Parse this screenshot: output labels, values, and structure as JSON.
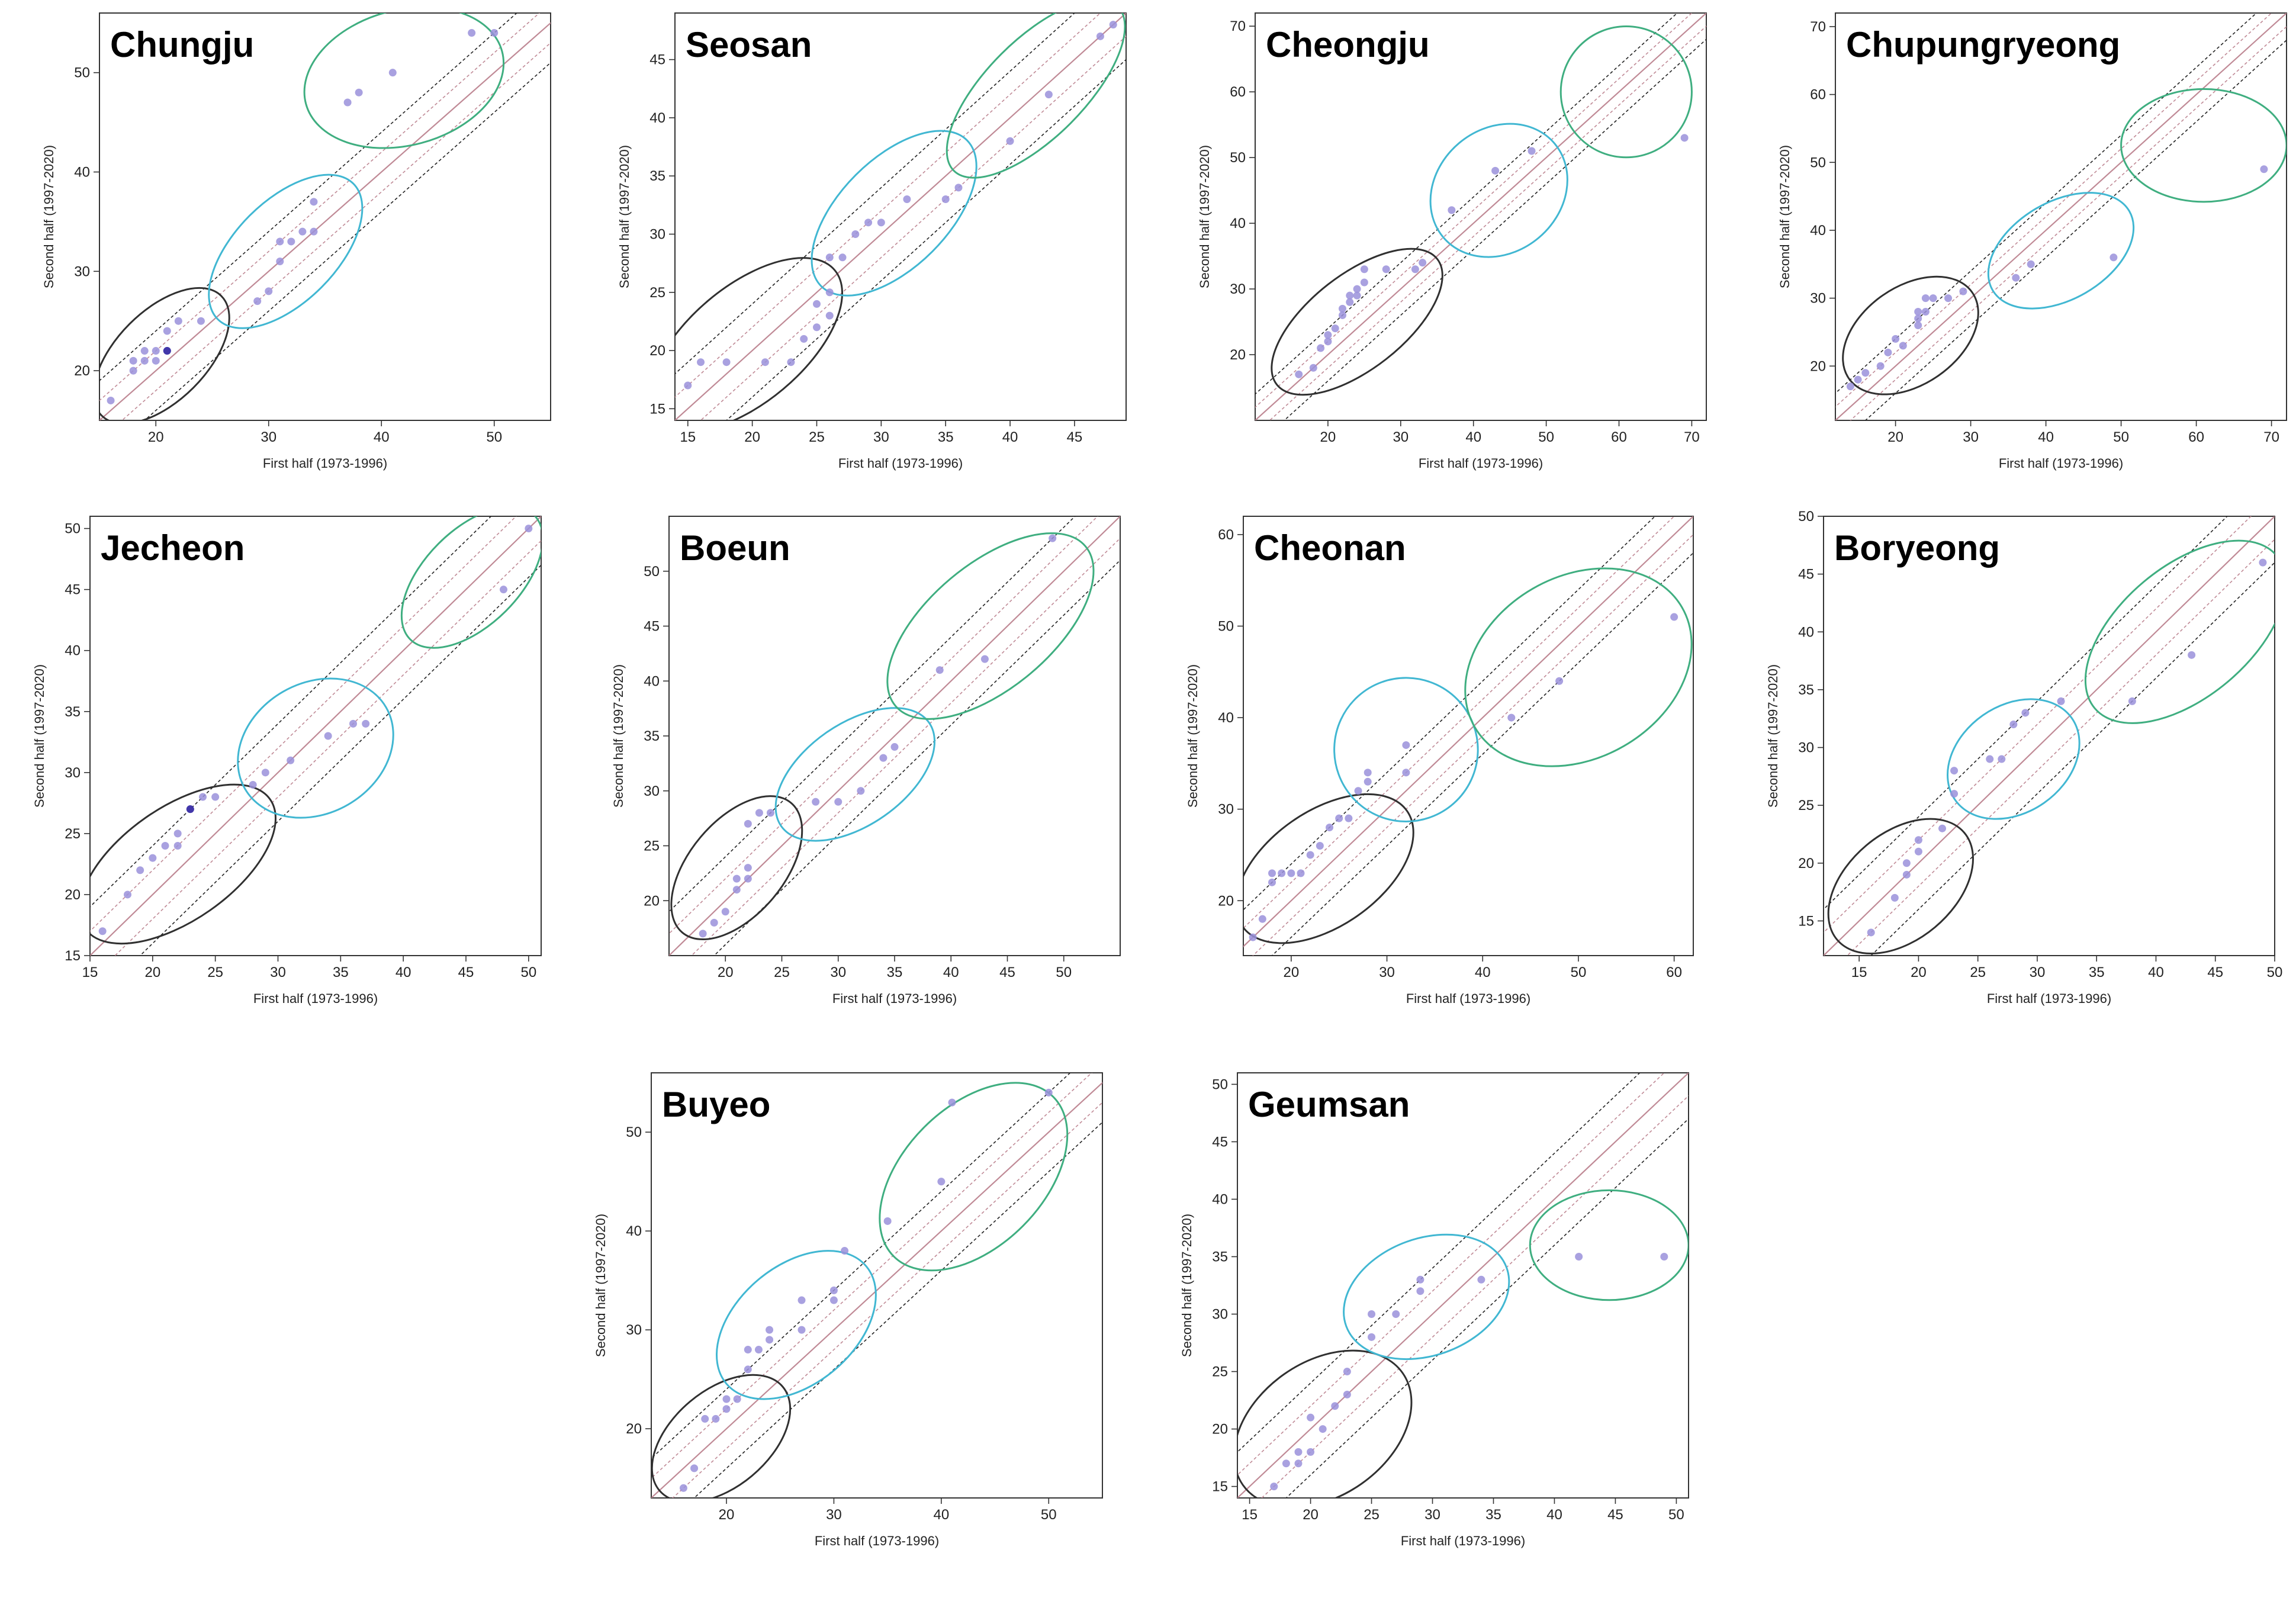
{
  "figure": {
    "x_axis_label": "First half (1973-1996)",
    "y_axis_label": "Second half (1997-2020)"
  },
  "colors": {
    "identity_line": "#c08a96",
    "interval_line": "#222222",
    "point_fill": "#9a90da",
    "point_dense": "#3e32a8",
    "cluster_low": "#303030",
    "cluster_mid": "#41b7d2",
    "cluster_high": "#3fae80",
    "frame": "#333333"
  },
  "chart_data": [
    {
      "station": "Chungju",
      "type": "scatter",
      "xlim": [
        15,
        55
      ],
      "ylim": [
        15,
        56
      ],
      "xticks": [
        20,
        30,
        40,
        50
      ],
      "yticks": [
        20,
        30,
        40,
        50
      ],
      "x": [
        16,
        18,
        18,
        19,
        19,
        20,
        20,
        21,
        21,
        21,
        22,
        24,
        29,
        30,
        31,
        31,
        32,
        33,
        34,
        34,
        37,
        38,
        41,
        48,
        50
      ],
      "y": [
        17,
        20,
        21,
        21,
        22,
        22,
        21,
        22,
        22,
        24,
        25,
        25,
        27,
        28,
        31,
        33,
        33,
        34,
        34,
        37,
        47,
        48,
        50,
        54,
        54
      ],
      "clusters": [
        {
          "group": "low",
          "cx": 20.5,
          "cy": 21.5,
          "rx": 7.5,
          "ry": 4.0,
          "angle": 45
        },
        {
          "group": "mid",
          "cx": 31.5,
          "cy": 32.0,
          "rx": 8.5,
          "ry": 4.5,
          "angle": 45
        },
        {
          "group": "high",
          "cx": 42.0,
          "cy": 49.5,
          "rx": 9.0,
          "ry": 6.0,
          "angle": 15
        }
      ]
    },
    {
      "station": "Seosan",
      "type": "scatter",
      "xlim": [
        14,
        49
      ],
      "ylim": [
        14,
        49
      ],
      "xticks": [
        15,
        20,
        25,
        30,
        35,
        40,
        45
      ],
      "yticks": [
        15,
        20,
        25,
        30,
        35,
        40,
        45
      ],
      "x": [
        15,
        16,
        18,
        21,
        23,
        24,
        25,
        25,
        26,
        26,
        26,
        27,
        28,
        29,
        30,
        32,
        35,
        36,
        40,
        43,
        47,
        48
      ],
      "y": [
        17,
        19,
        19,
        19,
        19,
        21,
        22,
        24,
        23,
        25,
        28,
        28,
        30,
        31,
        31,
        33,
        33,
        34,
        38,
        42,
        47,
        48
      ],
      "clusters": [
        {
          "group": "low",
          "cx": 19.5,
          "cy": 20.5,
          "rx": 9.0,
          "ry": 4.5,
          "angle": 40
        },
        {
          "group": "mid",
          "cx": 31.0,
          "cy": 31.8,
          "rx": 8.0,
          "ry": 4.2,
          "angle": 45
        },
        {
          "group": "high",
          "cx": 42.0,
          "cy": 42.5,
          "rx": 9.0,
          "ry": 3.8,
          "angle": 45
        }
      ]
    },
    {
      "station": "Cheongju",
      "type": "scatter",
      "xlim": [
        10,
        72
      ],
      "ylim": [
        10,
        72
      ],
      "xticks": [
        20,
        30,
        40,
        50,
        60,
        70
      ],
      "yticks": [
        20,
        30,
        40,
        50,
        60,
        70
      ],
      "x": [
        16,
        18,
        19,
        20,
        20,
        21,
        22,
        22,
        23,
        23,
        24,
        24,
        25,
        25,
        28,
        32,
        33,
        37,
        43,
        48,
        69
      ],
      "y": [
        17,
        18,
        21,
        22,
        23,
        24,
        26,
        27,
        28,
        29,
        29,
        30,
        31,
        33,
        33,
        33,
        34,
        42,
        48,
        51,
        53
      ],
      "clusters": [
        {
          "group": "low",
          "cx": 24.0,
          "cy": 25.0,
          "rx": 14.0,
          "ry": 6.5,
          "angle": 38
        },
        {
          "group": "mid",
          "cx": 43.5,
          "cy": 45.0,
          "rx": 10.0,
          "ry": 8.5,
          "angle": 40
        },
        {
          "group": "high",
          "cx": 61.0,
          "cy": 60.0,
          "rx": 9.0,
          "ry": 9.0,
          "angle": 0
        }
      ]
    },
    {
      "station": "Chupungryeong",
      "type": "scatter",
      "xlim": [
        12,
        72
      ],
      "ylim": [
        12,
        72
      ],
      "xticks": [
        20,
        30,
        40,
        50,
        60,
        70
      ],
      "yticks": [
        20,
        30,
        40,
        50,
        60,
        70
      ],
      "x": [
        14,
        15,
        16,
        18,
        19,
        20,
        21,
        23,
        23,
        23,
        24,
        24,
        25,
        27,
        29,
        36,
        38,
        49,
        69
      ],
      "y": [
        17,
        18,
        19,
        20,
        22,
        24,
        23,
        26,
        27,
        28,
        28,
        30,
        30,
        30,
        31,
        33,
        35,
        36,
        49
      ],
      "clusters": [
        {
          "group": "low",
          "cx": 22.0,
          "cy": 24.5,
          "rx": 10.0,
          "ry": 6.5,
          "angle": 35
        },
        {
          "group": "mid",
          "cx": 42.0,
          "cy": 37.0,
          "rx": 10.5,
          "ry": 6.5,
          "angle": 30
        },
        {
          "group": "high",
          "cx": 61.0,
          "cy": 52.5,
          "rx": 11.0,
          "ry": 7.5,
          "angle": 0
        }
      ]
    },
    {
      "station": "Jecheon",
      "type": "scatter",
      "xlim": [
        15,
        51
      ],
      "ylim": [
        15,
        51
      ],
      "xticks": [
        15,
        20,
        25,
        30,
        35,
        40,
        45,
        50
      ],
      "yticks": [
        15,
        20,
        25,
        30,
        35,
        40,
        45,
        50
      ],
      "x": [
        16,
        18,
        19,
        20,
        21,
        22,
        22,
        23,
        23,
        24,
        25,
        28,
        29,
        31,
        34,
        36,
        37,
        48,
        50
      ],
      "y": [
        17,
        20,
        22,
        23,
        24,
        24,
        25,
        27,
        27,
        28,
        28,
        29,
        30,
        31,
        33,
        34,
        34,
        45,
        50
      ],
      "clusters": [
        {
          "group": "low",
          "cx": 22.0,
          "cy": 22.5,
          "rx": 9.0,
          "ry": 4.5,
          "angle": 35
        },
        {
          "group": "mid",
          "cx": 33.0,
          "cy": 32.0,
          "rx": 6.5,
          "ry": 5.2,
          "angle": 30
        },
        {
          "group": "high",
          "cx": 45.5,
          "cy": 46.0,
          "rx": 7.0,
          "ry": 3.8,
          "angle": 45
        }
      ]
    },
    {
      "station": "Boeun",
      "type": "scatter",
      "xlim": [
        15,
        55
      ],
      "ylim": [
        15,
        55
      ],
      "xticks": [
        20,
        25,
        30,
        35,
        40,
        45,
        50
      ],
      "yticks": [
        20,
        25,
        30,
        35,
        40,
        45,
        50
      ],
      "x": [
        18,
        19,
        20,
        21,
        21,
        22,
        22,
        22,
        23,
        24,
        28,
        30,
        32,
        34,
        35,
        39,
        43,
        49
      ],
      "y": [
        17,
        18,
        19,
        21,
        22,
        22,
        23,
        27,
        28,
        28,
        29,
        29,
        30,
        33,
        34,
        41,
        42,
        53
      ],
      "clusters": [
        {
          "group": "low",
          "cx": 21.0,
          "cy": 23.0,
          "rx": 7.5,
          "ry": 4.2,
          "angle": 50
        },
        {
          "group": "mid",
          "cx": 31.5,
          "cy": 31.5,
          "rx": 8.0,
          "ry": 4.5,
          "angle": 35
        },
        {
          "group": "high",
          "cx": 43.5,
          "cy": 45.0,
          "rx": 11.0,
          "ry": 5.5,
          "angle": 40
        }
      ]
    },
    {
      "station": "Cheonan",
      "type": "scatter",
      "xlim": [
        15,
        62
      ],
      "ylim": [
        14,
        62
      ],
      "xticks": [
        20,
        30,
        40,
        50,
        60
      ],
      "yticks": [
        20,
        30,
        40,
        50,
        60
      ],
      "x": [
        16,
        17,
        18,
        18,
        19,
        20,
        21,
        22,
        23,
        24,
        25,
        26,
        27,
        28,
        28,
        32,
        32,
        43,
        48,
        60
      ],
      "y": [
        16,
        18,
        22,
        23,
        23,
        23,
        23,
        25,
        26,
        28,
        29,
        29,
        32,
        33,
        34,
        34,
        37,
        40,
        44,
        51
      ],
      "clusters": [
        {
          "group": "low",
          "cx": 23.5,
          "cy": 23.5,
          "rx": 10.5,
          "ry": 6.0,
          "angle": 35
        },
        {
          "group": "mid",
          "cx": 32.0,
          "cy": 36.5,
          "rx": 7.5,
          "ry": 7.5,
          "angle": 20
        },
        {
          "group": "high",
          "cx": 50.0,
          "cy": 45.5,
          "rx": 12.5,
          "ry": 9.5,
          "angle": 30
        }
      ]
    },
    {
      "station": "Boryeong",
      "type": "scatter",
      "xlim": [
        12,
        50
      ],
      "ylim": [
        12,
        50
      ],
      "xticks": [
        15,
        20,
        25,
        30,
        35,
        40,
        45,
        50
      ],
      "yticks": [
        15,
        20,
        25,
        30,
        35,
        40,
        45,
        50
      ],
      "x": [
        16,
        18,
        19,
        19,
        20,
        20,
        22,
        23,
        23,
        26,
        27,
        28,
        29,
        32,
        38,
        43,
        49
      ],
      "y": [
        14,
        17,
        19,
        20,
        21,
        22,
        23,
        26,
        28,
        29,
        29,
        32,
        33,
        34,
        34,
        38,
        46
      ],
      "clusters": [
        {
          "group": "low",
          "cx": 18.5,
          "cy": 18.0,
          "rx": 7.0,
          "ry": 4.5,
          "angle": 40
        },
        {
          "group": "mid",
          "cx": 28.0,
          "cy": 29.0,
          "rx": 6.0,
          "ry": 4.5,
          "angle": 35
        },
        {
          "group": "high",
          "cx": 42.5,
          "cy": 40.0,
          "rx": 10.0,
          "ry": 5.5,
          "angle": 40
        }
      ]
    },
    {
      "station": "Buyeo",
      "type": "scatter",
      "xlim": [
        13,
        55
      ],
      "ylim": [
        13,
        56
      ],
      "xticks": [
        20,
        30,
        40,
        50
      ],
      "yticks": [
        20,
        30,
        40,
        50
      ],
      "x": [
        16,
        17,
        18,
        19,
        20,
        20,
        21,
        22,
        22,
        23,
        24,
        24,
        27,
        27,
        30,
        30,
        31,
        35,
        40,
        41,
        50
      ],
      "y": [
        14,
        16,
        21,
        21,
        22,
        23,
        23,
        26,
        28,
        28,
        29,
        30,
        30,
        33,
        33,
        34,
        38,
        41,
        45,
        53,
        54
      ],
      "clusters": [
        {
          "group": "low",
          "cx": 19.5,
          "cy": 19.0,
          "rx": 7.5,
          "ry": 4.5,
          "angle": 40
        },
        {
          "group": "mid",
          "cx": 26.5,
          "cy": 30.5,
          "rx": 8.5,
          "ry": 5.5,
          "angle": 40
        },
        {
          "group": "high",
          "cx": 43.0,
          "cy": 45.5,
          "rx": 10.5,
          "ry": 6.5,
          "angle": 45
        }
      ]
    },
    {
      "station": "Geumsan",
      "type": "scatter",
      "xlim": [
        14,
        51
      ],
      "ylim": [
        14,
        51
      ],
      "xticks": [
        15,
        20,
        25,
        30,
        35,
        40,
        45,
        50
      ],
      "yticks": [
        15,
        20,
        25,
        30,
        35,
        40,
        45,
        50
      ],
      "x": [
        17,
        18,
        19,
        19,
        20,
        20,
        21,
        22,
        23,
        23,
        25,
        25,
        27,
        29,
        29,
        34,
        42,
        49
      ],
      "y": [
        15,
        17,
        17,
        18,
        18,
        21,
        20,
        22,
        23,
        25,
        28,
        30,
        30,
        32,
        33,
        33,
        35,
        35
      ],
      "clusters": [
        {
          "group": "low",
          "cx": 21.0,
          "cy": 20.0,
          "rx": 8.0,
          "ry": 5.5,
          "angle": 35
        },
        {
          "group": "mid",
          "cx": 29.5,
          "cy": 31.5,
          "rx": 7.0,
          "ry": 4.8,
          "angle": 20
        },
        {
          "group": "high",
          "cx": 44.5,
          "cy": 36.0,
          "rx": 6.5,
          "ry": 4.5,
          "angle": 0
        }
      ]
    }
  ]
}
